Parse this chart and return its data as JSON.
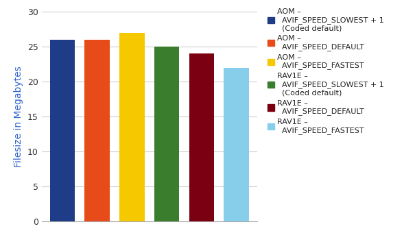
{
  "values": [
    26,
    26,
    27,
    25,
    24,
    22
  ],
  "colors": [
    "#1F3C88",
    "#E84B1A",
    "#F5C800",
    "#3A7D2C",
    "#7B0011",
    "#87CEEB"
  ],
  "labels": [
    "AOM –\n  AVIF_SPEED_SLOWEST + 1\n  (Coded default)",
    "AOM –\n  AVIF_SPEED_DEFAULT",
    "AOM –\n  AVIF_SPEED_FASTEST",
    "RAV1E –\n  AVIF_SPEED_SLOWEST + 1\n  (Coded default)",
    "RAV1E –\n  AVIF_SPEED_DEFAULT",
    "RAV1E –\n  AVIF_SPEED_FASTEST"
  ],
  "ylabel": "Filesize in Megabytes",
  "ylim": [
    0,
    30
  ],
  "yticks": [
    0,
    5,
    10,
    15,
    20,
    25,
    30
  ],
  "background_color": "#FFFFFF",
  "grid_color": "#CCCCCC",
  "legend_fontsize": 8.0,
  "ylabel_fontsize": 10,
  "tick_fontsize": 9,
  "bar_width": 0.72
}
